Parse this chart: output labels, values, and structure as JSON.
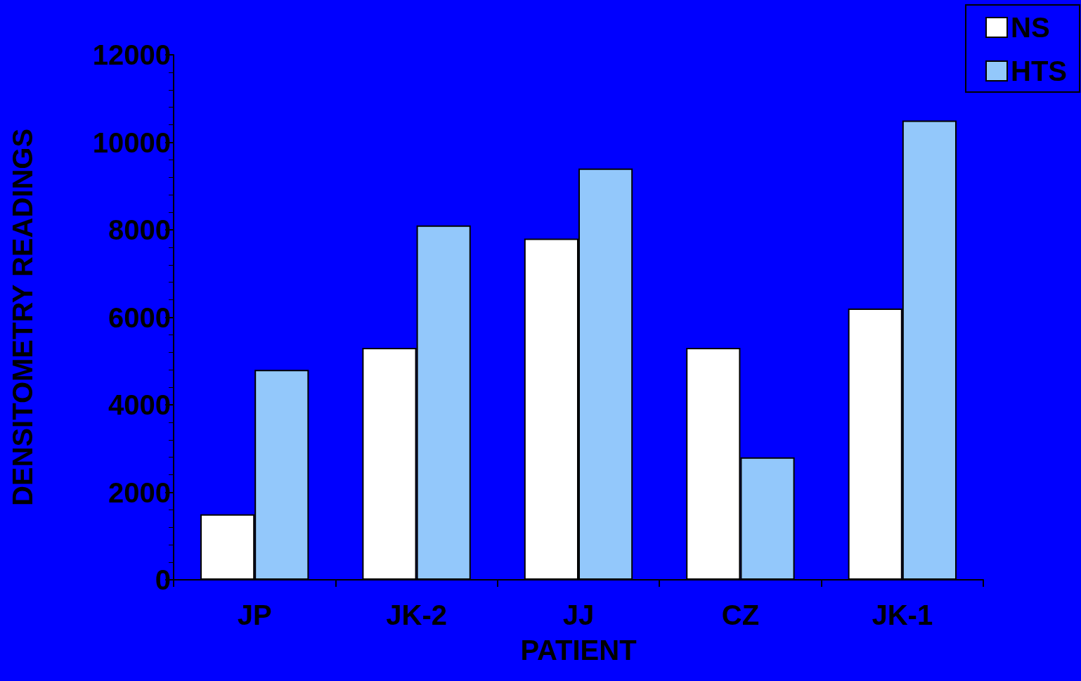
{
  "chart_data": {
    "type": "bar",
    "xlabel": "PATIENT",
    "ylabel": "DENSITOMETRY READINGS",
    "categories": [
      "JP",
      "JK-2",
      "JJ",
      "CZ",
      "JK-1"
    ],
    "series": [
      {
        "name": "NS",
        "color": "#ffffff",
        "values": [
          1500,
          5300,
          7800,
          5300,
          6200
        ]
      },
      {
        "name": "HTS",
        "color": "#93c8fb",
        "values": [
          4800,
          8100,
          9400,
          2800,
          10500
        ]
      }
    ],
    "ylim": [
      0,
      12000
    ],
    "yticks": [
      0,
      2000,
      4000,
      6000,
      8000,
      10000,
      12000
    ],
    "grid": false,
    "legend": "top right"
  }
}
